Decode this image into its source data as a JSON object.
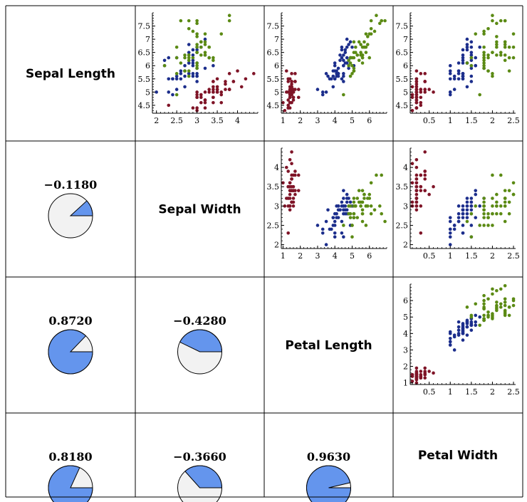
{
  "colors": {
    "setosa": "#7f1427",
    "versicolor": "#1c2e8c",
    "virginica": "#5b8a14",
    "pie_fill": "#6495ed",
    "pie_bg": "#f2f2f2",
    "border": "#000000"
  },
  "variables": [
    "Sepal Length",
    "Sepal Width",
    "Petal Length",
    "Petal Width"
  ],
  "correlations": [
    {
      "row": 1,
      "col": 0,
      "value": -0.118,
      "label": "−0.1180"
    },
    {
      "row": 2,
      "col": 0,
      "value": 0.872,
      "label": "0.8720"
    },
    {
      "row": 2,
      "col": 1,
      "value": -0.428,
      "label": "−0.4280"
    },
    {
      "row": 3,
      "col": 0,
      "value": 0.818,
      "label": "0.8180"
    },
    {
      "row": 3,
      "col": 1,
      "value": -0.366,
      "label": "−0.3660"
    },
    {
      "row": 3,
      "col": 2,
      "value": 0.963,
      "label": "0.9630"
    }
  ],
  "chart_data": {
    "type": "scatter",
    "title": "",
    "axes": [
      {
        "name": "Sepal Length",
        "range": [
          4.2,
          8.0
        ],
        "ticks": [
          4.5,
          5,
          5.5,
          6,
          6.5,
          7,
          7.5
        ],
        "tick_labels": [
          "4.5",
          "5",
          "5.5",
          "6",
          "6.5",
          "7",
          "7.5"
        ]
      },
      {
        "name": "Sepal Width",
        "range": [
          1.9,
          4.5
        ],
        "ticks": [
          2,
          2.5,
          3,
          3.5,
          4
        ],
        "tick_labels": [
          "2",
          "2.5",
          "3",
          "3.5",
          "4"
        ]
      },
      {
        "name": "Petal Length",
        "range": [
          0.9,
          7.0
        ],
        "ticks": [
          1,
          2,
          3,
          4,
          5,
          6
        ],
        "tick_labels": [
          "1",
          "2",
          "3",
          "4",
          "5",
          "6"
        ]
      },
      {
        "name": "Petal Width",
        "range": [
          0.05,
          2.55
        ],
        "ticks": [
          0.5,
          1,
          1.5,
          2,
          2.5
        ],
        "tick_labels": [
          "0.5",
          "1",
          "1.5",
          "2",
          "2.5"
        ]
      }
    ],
    "series": [
      {
        "species": "setosa",
        "points": [
          [
            5.1,
            3.5,
            1.4,
            0.2
          ],
          [
            4.9,
            3.0,
            1.4,
            0.2
          ],
          [
            4.7,
            3.2,
            1.3,
            0.2
          ],
          [
            4.6,
            3.1,
            1.5,
            0.2
          ],
          [
            5.0,
            3.6,
            1.4,
            0.2
          ],
          [
            5.4,
            3.9,
            1.7,
            0.4
          ],
          [
            4.6,
            3.4,
            1.4,
            0.3
          ],
          [
            5.0,
            3.4,
            1.5,
            0.2
          ],
          [
            4.4,
            2.9,
            1.4,
            0.2
          ],
          [
            4.9,
            3.1,
            1.5,
            0.1
          ],
          [
            5.4,
            3.7,
            1.5,
            0.2
          ],
          [
            4.8,
            3.4,
            1.6,
            0.2
          ],
          [
            4.8,
            3.0,
            1.4,
            0.1
          ],
          [
            4.3,
            3.0,
            1.1,
            0.1
          ],
          [
            5.8,
            4.0,
            1.2,
            0.2
          ],
          [
            5.7,
            4.4,
            1.5,
            0.4
          ],
          [
            5.4,
            3.9,
            1.3,
            0.4
          ],
          [
            5.1,
            3.5,
            1.4,
            0.3
          ],
          [
            5.7,
            3.8,
            1.7,
            0.3
          ],
          [
            5.1,
            3.8,
            1.5,
            0.3
          ],
          [
            5.4,
            3.4,
            1.7,
            0.2
          ],
          [
            5.1,
            3.7,
            1.5,
            0.4
          ],
          [
            4.6,
            3.6,
            1.0,
            0.2
          ],
          [
            5.1,
            3.3,
            1.7,
            0.5
          ],
          [
            4.8,
            3.4,
            1.9,
            0.2
          ],
          [
            5.0,
            3.0,
            1.6,
            0.2
          ],
          [
            5.0,
            3.4,
            1.6,
            0.4
          ],
          [
            5.2,
            3.5,
            1.5,
            0.2
          ],
          [
            5.2,
            3.4,
            1.4,
            0.2
          ],
          [
            4.7,
            3.2,
            1.6,
            0.2
          ],
          [
            4.8,
            3.1,
            1.6,
            0.2
          ],
          [
            5.4,
            3.4,
            1.5,
            0.4
          ],
          [
            5.2,
            4.1,
            1.5,
            0.1
          ],
          [
            5.5,
            4.2,
            1.4,
            0.2
          ],
          [
            4.9,
            3.1,
            1.5,
            0.2
          ],
          [
            5.0,
            3.2,
            1.2,
            0.2
          ],
          [
            5.5,
            3.5,
            1.3,
            0.2
          ],
          [
            4.9,
            3.6,
            1.4,
            0.1
          ],
          [
            4.4,
            3.0,
            1.3,
            0.2
          ],
          [
            5.1,
            3.4,
            1.5,
            0.2
          ],
          [
            5.0,
            3.5,
            1.3,
            0.3
          ],
          [
            4.5,
            2.3,
            1.3,
            0.3
          ],
          [
            4.4,
            3.2,
            1.3,
            0.2
          ],
          [
            5.0,
            3.5,
            1.6,
            0.6
          ],
          [
            5.1,
            3.8,
            1.9,
            0.4
          ],
          [
            4.8,
            3.0,
            1.4,
            0.3
          ],
          [
            5.1,
            3.8,
            1.6,
            0.2
          ],
          [
            4.6,
            3.2,
            1.4,
            0.2
          ],
          [
            5.3,
            3.7,
            1.5,
            0.2
          ],
          [
            5.0,
            3.3,
            1.4,
            0.2
          ]
        ]
      },
      {
        "species": "versicolor",
        "points": [
          [
            7.0,
            3.2,
            4.7,
            1.4
          ],
          [
            6.4,
            3.2,
            4.5,
            1.5
          ],
          [
            6.9,
            3.1,
            4.9,
            1.5
          ],
          [
            5.5,
            2.3,
            4.0,
            1.3
          ],
          [
            6.5,
            2.8,
            4.6,
            1.5
          ],
          [
            5.7,
            2.8,
            4.5,
            1.3
          ],
          [
            6.3,
            3.3,
            4.7,
            1.6
          ],
          [
            4.9,
            2.4,
            3.3,
            1.0
          ],
          [
            6.6,
            2.9,
            4.6,
            1.3
          ],
          [
            5.2,
            2.7,
            3.9,
            1.4
          ],
          [
            5.0,
            2.0,
            3.5,
            1.0
          ],
          [
            5.9,
            3.0,
            4.2,
            1.5
          ],
          [
            6.0,
            2.2,
            4.0,
            1.0
          ],
          [
            6.1,
            2.9,
            4.7,
            1.4
          ],
          [
            5.6,
            2.9,
            3.6,
            1.3
          ],
          [
            6.7,
            3.1,
            4.4,
            1.4
          ],
          [
            5.6,
            3.0,
            4.5,
            1.5
          ],
          [
            5.8,
            2.7,
            4.1,
            1.0
          ],
          [
            6.2,
            2.2,
            4.5,
            1.5
          ],
          [
            5.6,
            2.5,
            3.9,
            1.1
          ],
          [
            5.9,
            3.2,
            4.8,
            1.8
          ],
          [
            6.1,
            2.8,
            4.0,
            1.3
          ],
          [
            6.3,
            2.5,
            4.9,
            1.5
          ],
          [
            6.1,
            2.8,
            4.7,
            1.2
          ],
          [
            6.4,
            2.9,
            4.3,
            1.3
          ],
          [
            6.6,
            3.0,
            4.4,
            1.4
          ],
          [
            6.8,
            2.8,
            4.8,
            1.4
          ],
          [
            6.7,
            3.0,
            5.0,
            1.7
          ],
          [
            6.0,
            2.9,
            4.5,
            1.5
          ],
          [
            5.7,
            2.6,
            3.5,
            1.0
          ],
          [
            5.5,
            2.4,
            3.8,
            1.1
          ],
          [
            5.5,
            2.4,
            3.7,
            1.0
          ],
          [
            5.8,
            2.7,
            3.9,
            1.2
          ],
          [
            6.0,
            2.7,
            5.1,
            1.6
          ],
          [
            5.4,
            3.0,
            4.5,
            1.5
          ],
          [
            6.0,
            3.4,
            4.5,
            1.6
          ],
          [
            6.7,
            3.1,
            4.7,
            1.5
          ],
          [
            6.3,
            2.3,
            4.4,
            1.3
          ],
          [
            5.6,
            3.0,
            4.1,
            1.3
          ],
          [
            5.5,
            2.5,
            4.0,
            1.3
          ],
          [
            5.5,
            2.6,
            4.4,
            1.2
          ],
          [
            6.1,
            3.0,
            4.6,
            1.4
          ],
          [
            5.8,
            2.6,
            4.0,
            1.2
          ],
          [
            5.0,
            2.3,
            3.3,
            1.0
          ],
          [
            5.6,
            2.7,
            4.2,
            1.3
          ],
          [
            5.7,
            3.0,
            4.2,
            1.2
          ],
          [
            5.7,
            2.9,
            4.2,
            1.3
          ],
          [
            6.2,
            2.9,
            4.3,
            1.3
          ],
          [
            5.1,
            2.5,
            3.0,
            1.1
          ],
          [
            5.7,
            2.8,
            4.1,
            1.3
          ]
        ]
      },
      {
        "species": "virginica",
        "points": [
          [
            6.3,
            3.3,
            6.0,
            2.5
          ],
          [
            5.8,
            2.7,
            5.1,
            1.9
          ],
          [
            7.1,
            3.0,
            5.9,
            2.1
          ],
          [
            6.3,
            2.9,
            5.6,
            1.8
          ],
          [
            6.5,
            3.0,
            5.8,
            2.2
          ],
          [
            7.6,
            3.0,
            6.6,
            2.1
          ],
          [
            4.9,
            2.5,
            4.5,
            1.7
          ],
          [
            7.3,
            2.9,
            6.3,
            1.8
          ],
          [
            6.7,
            2.5,
            5.8,
            1.8
          ],
          [
            7.2,
            3.6,
            6.1,
            2.5
          ],
          [
            6.5,
            3.2,
            5.1,
            2.0
          ],
          [
            6.4,
            2.7,
            5.3,
            1.9
          ],
          [
            6.8,
            3.0,
            5.5,
            2.1
          ],
          [
            5.7,
            2.5,
            5.0,
            2.0
          ],
          [
            5.8,
            2.8,
            5.1,
            2.4
          ],
          [
            6.4,
            3.2,
            5.3,
            2.3
          ],
          [
            6.5,
            3.0,
            5.5,
            1.8
          ],
          [
            7.7,
            3.8,
            6.7,
            2.2
          ],
          [
            7.7,
            2.6,
            6.9,
            2.3
          ],
          [
            6.0,
            2.2,
            5.0,
            1.5
          ],
          [
            6.9,
            3.2,
            5.7,
            2.3
          ],
          [
            5.6,
            2.8,
            4.9,
            2.0
          ],
          [
            7.7,
            2.8,
            6.7,
            2.0
          ],
          [
            6.3,
            2.7,
            4.9,
            1.8
          ],
          [
            6.7,
            3.3,
            5.7,
            2.1
          ],
          [
            7.2,
            3.2,
            6.0,
            1.8
          ],
          [
            6.2,
            2.8,
            4.8,
            1.8
          ],
          [
            6.1,
            3.0,
            4.9,
            1.8
          ],
          [
            6.4,
            2.8,
            5.6,
            2.1
          ],
          [
            7.2,
            3.0,
            5.8,
            1.6
          ],
          [
            7.4,
            2.8,
            6.1,
            1.9
          ],
          [
            7.9,
            3.8,
            6.4,
            2.0
          ],
          [
            6.4,
            2.8,
            5.6,
            2.2
          ],
          [
            6.3,
            2.8,
            5.1,
            1.5
          ],
          [
            6.1,
            2.6,
            5.6,
            1.4
          ],
          [
            7.7,
            3.0,
            6.1,
            2.3
          ],
          [
            6.3,
            3.4,
            5.6,
            2.4
          ],
          [
            6.4,
            3.1,
            5.5,
            1.8
          ],
          [
            6.0,
            3.0,
            4.8,
            1.8
          ],
          [
            6.9,
            3.1,
            5.4,
            2.1
          ],
          [
            6.7,
            3.1,
            5.6,
            2.4
          ],
          [
            6.9,
            3.1,
            5.1,
            2.3
          ],
          [
            5.8,
            2.7,
            5.1,
            1.9
          ],
          [
            6.8,
            3.2,
            5.9,
            2.3
          ],
          [
            6.7,
            3.3,
            5.7,
            2.5
          ],
          [
            6.7,
            3.0,
            5.2,
            2.3
          ],
          [
            6.3,
            2.5,
            5.0,
            1.9
          ],
          [
            6.5,
            3.0,
            5.2,
            2.0
          ],
          [
            6.2,
            3.4,
            5.4,
            2.3
          ],
          [
            5.9,
            3.0,
            5.1,
            1.8
          ]
        ]
      }
    ]
  }
}
